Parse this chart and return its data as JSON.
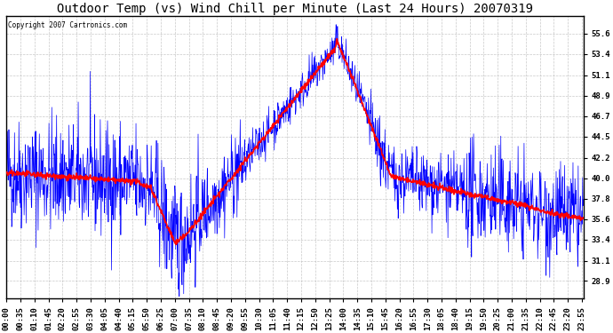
{
  "title": "Outdoor Temp (vs) Wind Chill per Minute (Last 24 Hours) 20070319",
  "copyright": "Copyright 2007 Cartronics.com",
  "yticks": [
    28.9,
    31.1,
    33.4,
    35.6,
    37.8,
    40.0,
    42.2,
    44.5,
    46.7,
    48.9,
    51.1,
    53.4,
    55.6
  ],
  "ylim": [
    27.0,
    57.5
  ],
  "background_color": "#ffffff",
  "grid_color": "#bbbbbb",
  "line_color_temp": "blue",
  "line_color_wind": "red",
  "title_fontsize": 10,
  "tick_fontsize": 6.5
}
